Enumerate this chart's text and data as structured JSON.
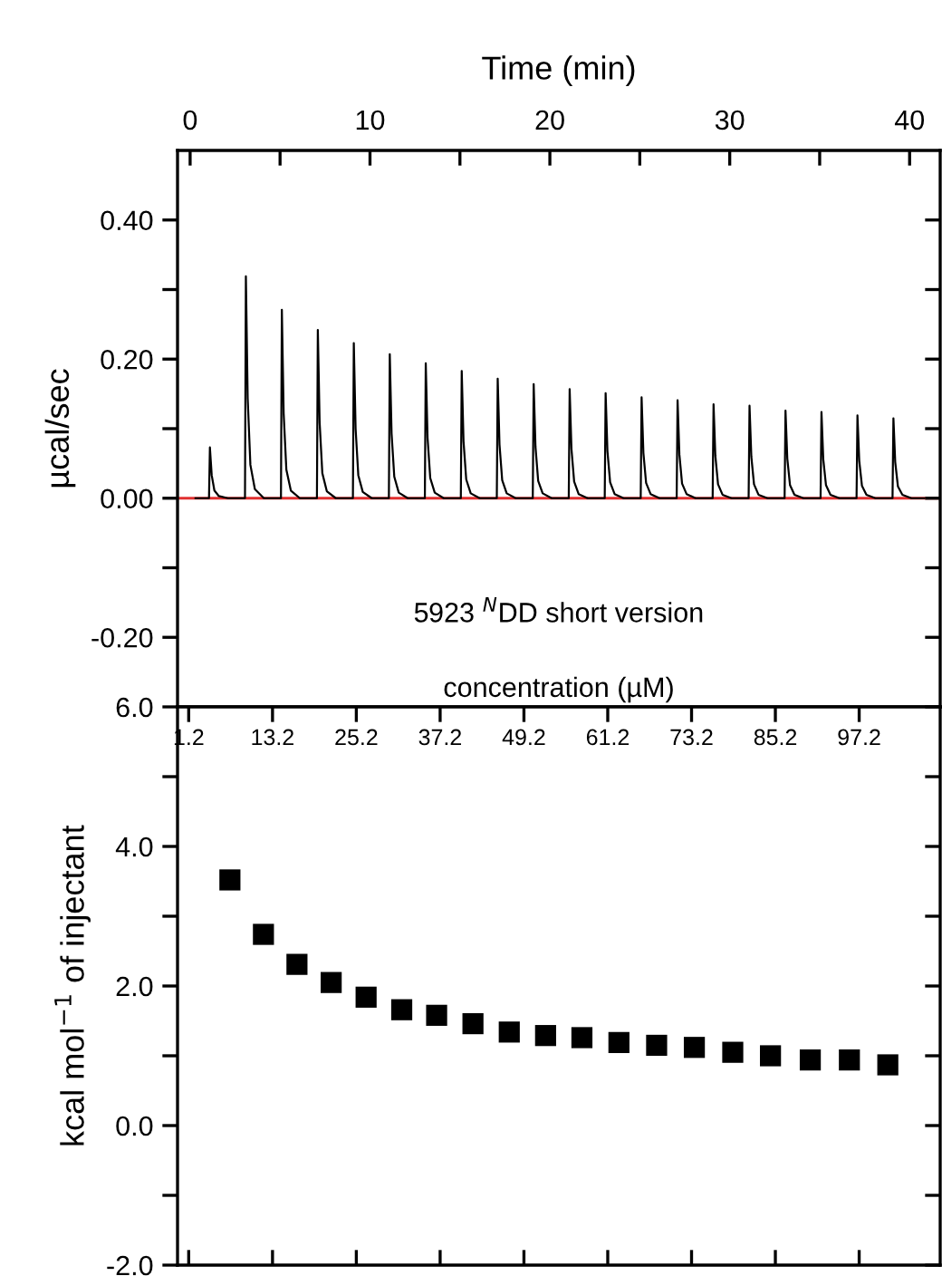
{
  "chart_data": [
    {
      "type": "line",
      "xlabel": "Time (min)",
      "ylabel": "µcal/sec",
      "xlim": [
        -0.7,
        41.7
      ],
      "xticks": [
        0,
        {
          "value": 5,
          "label": null
        },
        10,
        {
          "value": 15,
          "label": null
        },
        20,
        {
          "value": 25,
          "label": null
        },
        30,
        {
          "value": 35,
          "label": null
        },
        40
      ],
      "ylim": [
        -0.3,
        0.5
      ],
      "yticks": [
        {
          "value": -0.2,
          "label": "-0.20"
        },
        {
          "value": -0.1,
          "label": null
        },
        {
          "value": 0,
          "label": "0.00"
        },
        {
          "value": 0.1,
          "label": null
        },
        {
          "value": 0.2,
          "label": "0.20"
        },
        {
          "value": 0.3,
          "label": null
        },
        {
          "value": 0.4,
          "label": "0.40"
        }
      ],
      "annotations": [
        "5923 $^{N}$DD short version"
      ],
      "ref_lines": [
        {
          "axis": "y",
          "value": 0,
          "color": "#e03030"
        }
      ],
      "series": [
        {
          "color": "#000000",
          "x": [
            0.3,
            1.05,
            1.1,
            1.2,
            1.35,
            1.6,
            2.1,
            3.05,
            3.1,
            3.2,
            3.35,
            3.6,
            4.1,
            5.05,
            5.1,
            5.2,
            5.35,
            5.6,
            6.1,
            7.05,
            7.1,
            7.2,
            7.35,
            7.6,
            8.1,
            9.05,
            9.1,
            9.2,
            9.35,
            9.6,
            10.1,
            11.05,
            11.1,
            11.2,
            11.35,
            11.6,
            12.1,
            13.05,
            13.1,
            13.2,
            13.35,
            13.6,
            14.1,
            15.05,
            15.1,
            15.2,
            15.35,
            15.6,
            16.1,
            17.05,
            17.1,
            17.2,
            17.35,
            17.6,
            18.1,
            19.05,
            19.1,
            19.2,
            19.35,
            19.6,
            20.1,
            21.05,
            21.1,
            21.2,
            21.35,
            21.6,
            22.1,
            23.05,
            23.1,
            23.2,
            23.35,
            23.6,
            24.1,
            25.05,
            25.1,
            25.2,
            25.35,
            25.6,
            26.1,
            27.05,
            27.1,
            27.2,
            27.35,
            27.6,
            28.1,
            29.05,
            29.1,
            29.2,
            29.35,
            29.6,
            30.1,
            31.05,
            31.1,
            31.2,
            31.35,
            31.6,
            32.1,
            33.05,
            33.1,
            33.2,
            33.35,
            33.6,
            34.1,
            35.05,
            35.1,
            35.2,
            35.35,
            35.6,
            36.1,
            37.05,
            37.1,
            37.2,
            37.35,
            37.6,
            38.1,
            39.05,
            39.1,
            39.2,
            39.35,
            39.6,
            40.1,
            40.8
          ],
          "values": [
            0,
            0,
            0.073,
            0.033,
            0.011,
            0.003,
            0,
            0,
            0.319,
            0.144,
            0.048,
            0.013,
            0,
            0,
            0.271,
            0.122,
            0.041,
            0.011,
            0,
            0,
            0.242,
            0.109,
            0.036,
            0.01,
            0,
            0,
            0.223,
            0.1,
            0.033,
            0.009,
            0,
            0,
            0.207,
            0.093,
            0.031,
            0.008,
            0,
            0,
            0.194,
            0.087,
            0.029,
            0.008,
            0,
            0,
            0.183,
            0.082,
            0.027,
            0.007,
            0,
            0,
            0.172,
            0.077,
            0.026,
            0.007,
            0,
            0,
            0.164,
            0.074,
            0.025,
            0.007,
            0,
            0,
            0.157,
            0.071,
            0.024,
            0.006,
            0,
            0,
            0.151,
            0.068,
            0.023,
            0.006,
            0,
            0,
            0.145,
            0.065,
            0.022,
            0.006,
            0,
            0,
            0.141,
            0.063,
            0.021,
            0.006,
            0,
            0,
            0.135,
            0.061,
            0.02,
            0.005,
            0,
            0,
            0.133,
            0.06,
            0.02,
            0.005,
            0,
            0,
            0.126,
            0.057,
            0.019,
            0.005,
            0,
            0,
            0.124,
            0.056,
            0.019,
            0.005,
            0,
            0,
            0.119,
            0.054,
            0.018,
            0.005,
            0,
            0,
            0.115,
            0.052,
            0.017,
            0.005,
            0,
            0
          ]
        }
      ]
    },
    {
      "type": "scatter",
      "marker": "square",
      "xlabel": "concentration (µM)",
      "ylabel": "kcal mol$^{−1}$ of injectant",
      "xlim": [
        -0.4,
        108.8
      ],
      "xticks": [
        1.2,
        13.2,
        25.2,
        37.2,
        49.2,
        61.2,
        73.2,
        85.2,
        97.2
      ],
      "ylim": [
        -2,
        6
      ],
      "yticks": [
        {
          "value": -2,
          "label": "-2.0"
        },
        {
          "value": -1,
          "label": null
        },
        {
          "value": 0,
          "label": "0.0"
        },
        {
          "value": 1,
          "label": null
        },
        {
          "value": 2,
          "label": "2.0"
        },
        {
          "value": 3,
          "label": null
        },
        {
          "value": 4,
          "label": "4.0"
        },
        {
          "value": 5,
          "label": null
        },
        {
          "value": 6,
          "label": "6.0"
        }
      ],
      "series": [
        {
          "color": "#000000",
          "x": [
            7.1,
            11.9,
            16.7,
            21.6,
            26.6,
            31.7,
            36.7,
            41.9,
            47.1,
            52.3,
            57.5,
            62.8,
            68.2,
            73.6,
            79.1,
            84.5,
            90.2,
            95.8,
            101.3
          ],
          "values": [
            3.52,
            2.74,
            2.31,
            2.05,
            1.84,
            1.66,
            1.58,
            1.46,
            1.34,
            1.29,
            1.26,
            1.19,
            1.15,
            1.12,
            1.05,
            1.0,
            0.94,
            0.94,
            0.87
          ]
        }
      ]
    }
  ]
}
